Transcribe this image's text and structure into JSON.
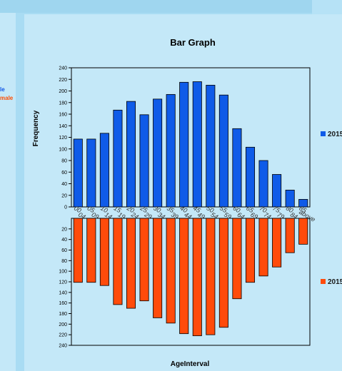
{
  "left_legend": {
    "male": "le",
    "female": "male"
  },
  "chart_data": {
    "type": "bar",
    "title": "Bar Graph",
    "xlabel": "AgeInterval",
    "ylabel": "Frequency",
    "categories": [
      "00 04",
      "05 09",
      "10 14",
      "15 19",
      "20 24",
      "25 29",
      "30 34",
      "35 39",
      "40 44",
      "45 49",
      "50 54",
      "55 59",
      "60 64",
      "65 69",
      "70 74",
      "75 79",
      "80 84",
      "85 above"
    ],
    "category_labels": [
      {
        "top": "00",
        "bottom": "04"
      },
      {
        "top": "05",
        "bottom": "09"
      },
      {
        "top": "10",
        "bottom": "14"
      },
      {
        "top": "15",
        "bottom": "19"
      },
      {
        "top": "20",
        "bottom": "24"
      },
      {
        "top": "25",
        "bottom": "29"
      },
      {
        "top": "30",
        "bottom": "34"
      },
      {
        "top": "35",
        "bottom": "39"
      },
      {
        "top": "40",
        "bottom": "44"
      },
      {
        "top": "45",
        "bottom": "49"
      },
      {
        "top": "50",
        "bottom": "54"
      },
      {
        "top": "55",
        "bottom": "59"
      },
      {
        "top": "60",
        "bottom": "64"
      },
      {
        "top": "65",
        "bottom": "69"
      },
      {
        "top": "70",
        "bottom": "74"
      },
      {
        "top": "75",
        "bottom": "79"
      },
      {
        "top": "80",
        "bottom": "84"
      },
      {
        "top": "85",
        "bottom": "above"
      }
    ],
    "ylim": [
      0,
      240
    ],
    "yticks": [
      0,
      20,
      40,
      60,
      80,
      100,
      120,
      140,
      160,
      180,
      200,
      220,
      240
    ],
    "series": [
      {
        "name": "2015",
        "color": "#0f5be8",
        "direction": "up",
        "values": [
          117,
          117,
          127,
          167,
          182,
          159,
          186,
          194,
          215,
          216,
          210,
          193,
          135,
          103,
          80,
          56,
          29,
          13
        ]
      },
      {
        "name": "2015",
        "color": "#ff4b0b",
        "direction": "down",
        "values": [
          121,
          121,
          127,
          163,
          170,
          156,
          188,
          198,
          218,
          222,
          220,
          206,
          152,
          121,
          109,
          92,
          65,
          49
        ]
      }
    ]
  }
}
